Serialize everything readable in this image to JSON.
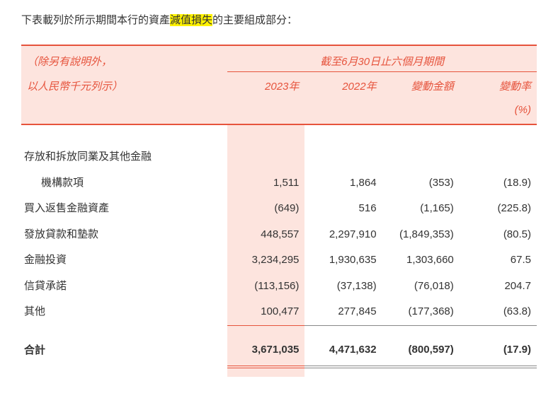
{
  "intro": {
    "pre": "下表載列於所示期間本行的資產",
    "highlight": "減值損失",
    "post": "的主要組成部分："
  },
  "header": {
    "note_line1": "（除另有說明外，",
    "note_line2": "以人民幣千元列示）",
    "period_label": "截至6月30日止六個月期間",
    "col_2023": "2023年",
    "col_2022": "2022年",
    "col_change_amt": "變動金額",
    "col_change_pct": "變動率",
    "pct_unit": "(%)"
  },
  "rows": [
    {
      "label": "存放和拆放同業及其他金融",
      "cont": true
    },
    {
      "label": "機構款項",
      "indent": true,
      "c2023": "1,511",
      "c2022": "1,864",
      "amt": "(353)",
      "pct": "(18.9)"
    },
    {
      "label": "買入返售金融資產",
      "c2023": "(649)",
      "c2022": "516",
      "amt": "(1,165)",
      "pct": "(225.8)"
    },
    {
      "label": "發放貸款和墊款",
      "c2023": "448,557",
      "c2022": "2,297,910",
      "amt": "(1,849,353)",
      "pct": "(80.5)"
    },
    {
      "label": "金融投資",
      "c2023": "3,234,295",
      "c2022": "1,930,635",
      "amt": "1,303,660",
      "pct": "67.5"
    },
    {
      "label": "信貸承諾",
      "c2023": "(113,156)",
      "c2022": "(37,138)",
      "amt": "(76,018)",
      "pct": "204.7"
    },
    {
      "label": "其他",
      "c2023": "100,477",
      "c2022": "277,845",
      "amt": "(177,368)",
      "pct": "(63.8)",
      "underline": true
    }
  ],
  "total": {
    "label": "合計",
    "c2023": "3,671,035",
    "c2022": "4,471,632",
    "amt": "(800,597)",
    "pct": "(17.9)"
  },
  "colors": {
    "accent": "#e6533c",
    "shade": "#fde4de",
    "highlight": "#fff200",
    "text": "#333333"
  },
  "col_widths_pct": [
    35,
    5,
    15,
    15,
    15,
    15
  ]
}
